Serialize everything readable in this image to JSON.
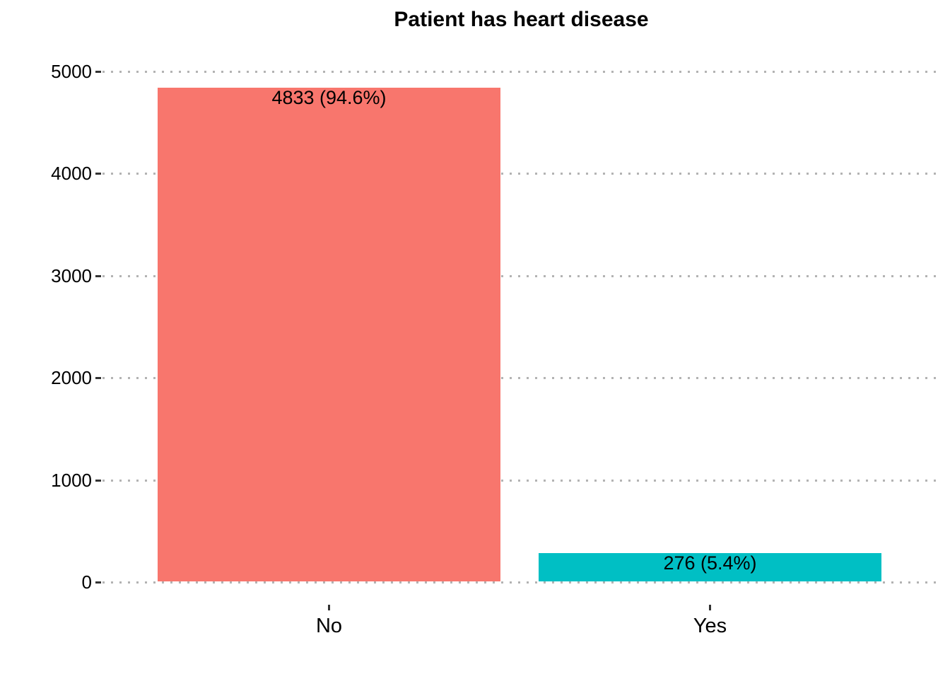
{
  "chart_data": {
    "type": "bar",
    "title": "Patient has heart disease",
    "categories": [
      "No",
      "Yes"
    ],
    "values": [
      4833,
      276
    ],
    "percentages": [
      94.6,
      5.4
    ],
    "bar_labels": [
      "4833 (94.6%)",
      "276 (5.4%)"
    ],
    "bar_colors": [
      "#F8766D",
      "#00BFC4"
    ],
    "xlabel": "",
    "ylabel": "",
    "ylim": [
      0,
      5000
    ],
    "yticks": [
      0,
      1000,
      2000,
      3000,
      4000,
      5000
    ],
    "grid": "horizontal dotted major gridlines only",
    "legend": "none",
    "colors": {
      "grid": "#B3B3B3",
      "tick": "#333333",
      "text": "#000000",
      "background": "#FFFFFF"
    }
  }
}
